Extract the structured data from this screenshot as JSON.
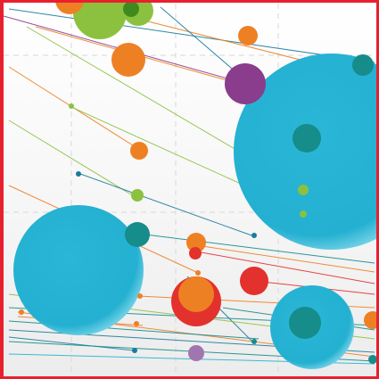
{
  "colors": {
    "frame": "#e8202e",
    "grid": "#d6d6d6",
    "background_top": "#ffffff",
    "background_mid": "#eeeeee",
    "blue": "#25b2d3",
    "teal": "#168c8b",
    "green": "#8cc13f",
    "dark_green": "#3f8a1e",
    "orange": "#ee8024",
    "red": "#e3312d",
    "purple": "#8a3d8c",
    "lavender": "#a176b0",
    "navy": "#1a7b9c"
  },
  "elements": [
    "frame-border",
    "grid-lines",
    "connector-lines",
    "bubbles"
  ]
}
